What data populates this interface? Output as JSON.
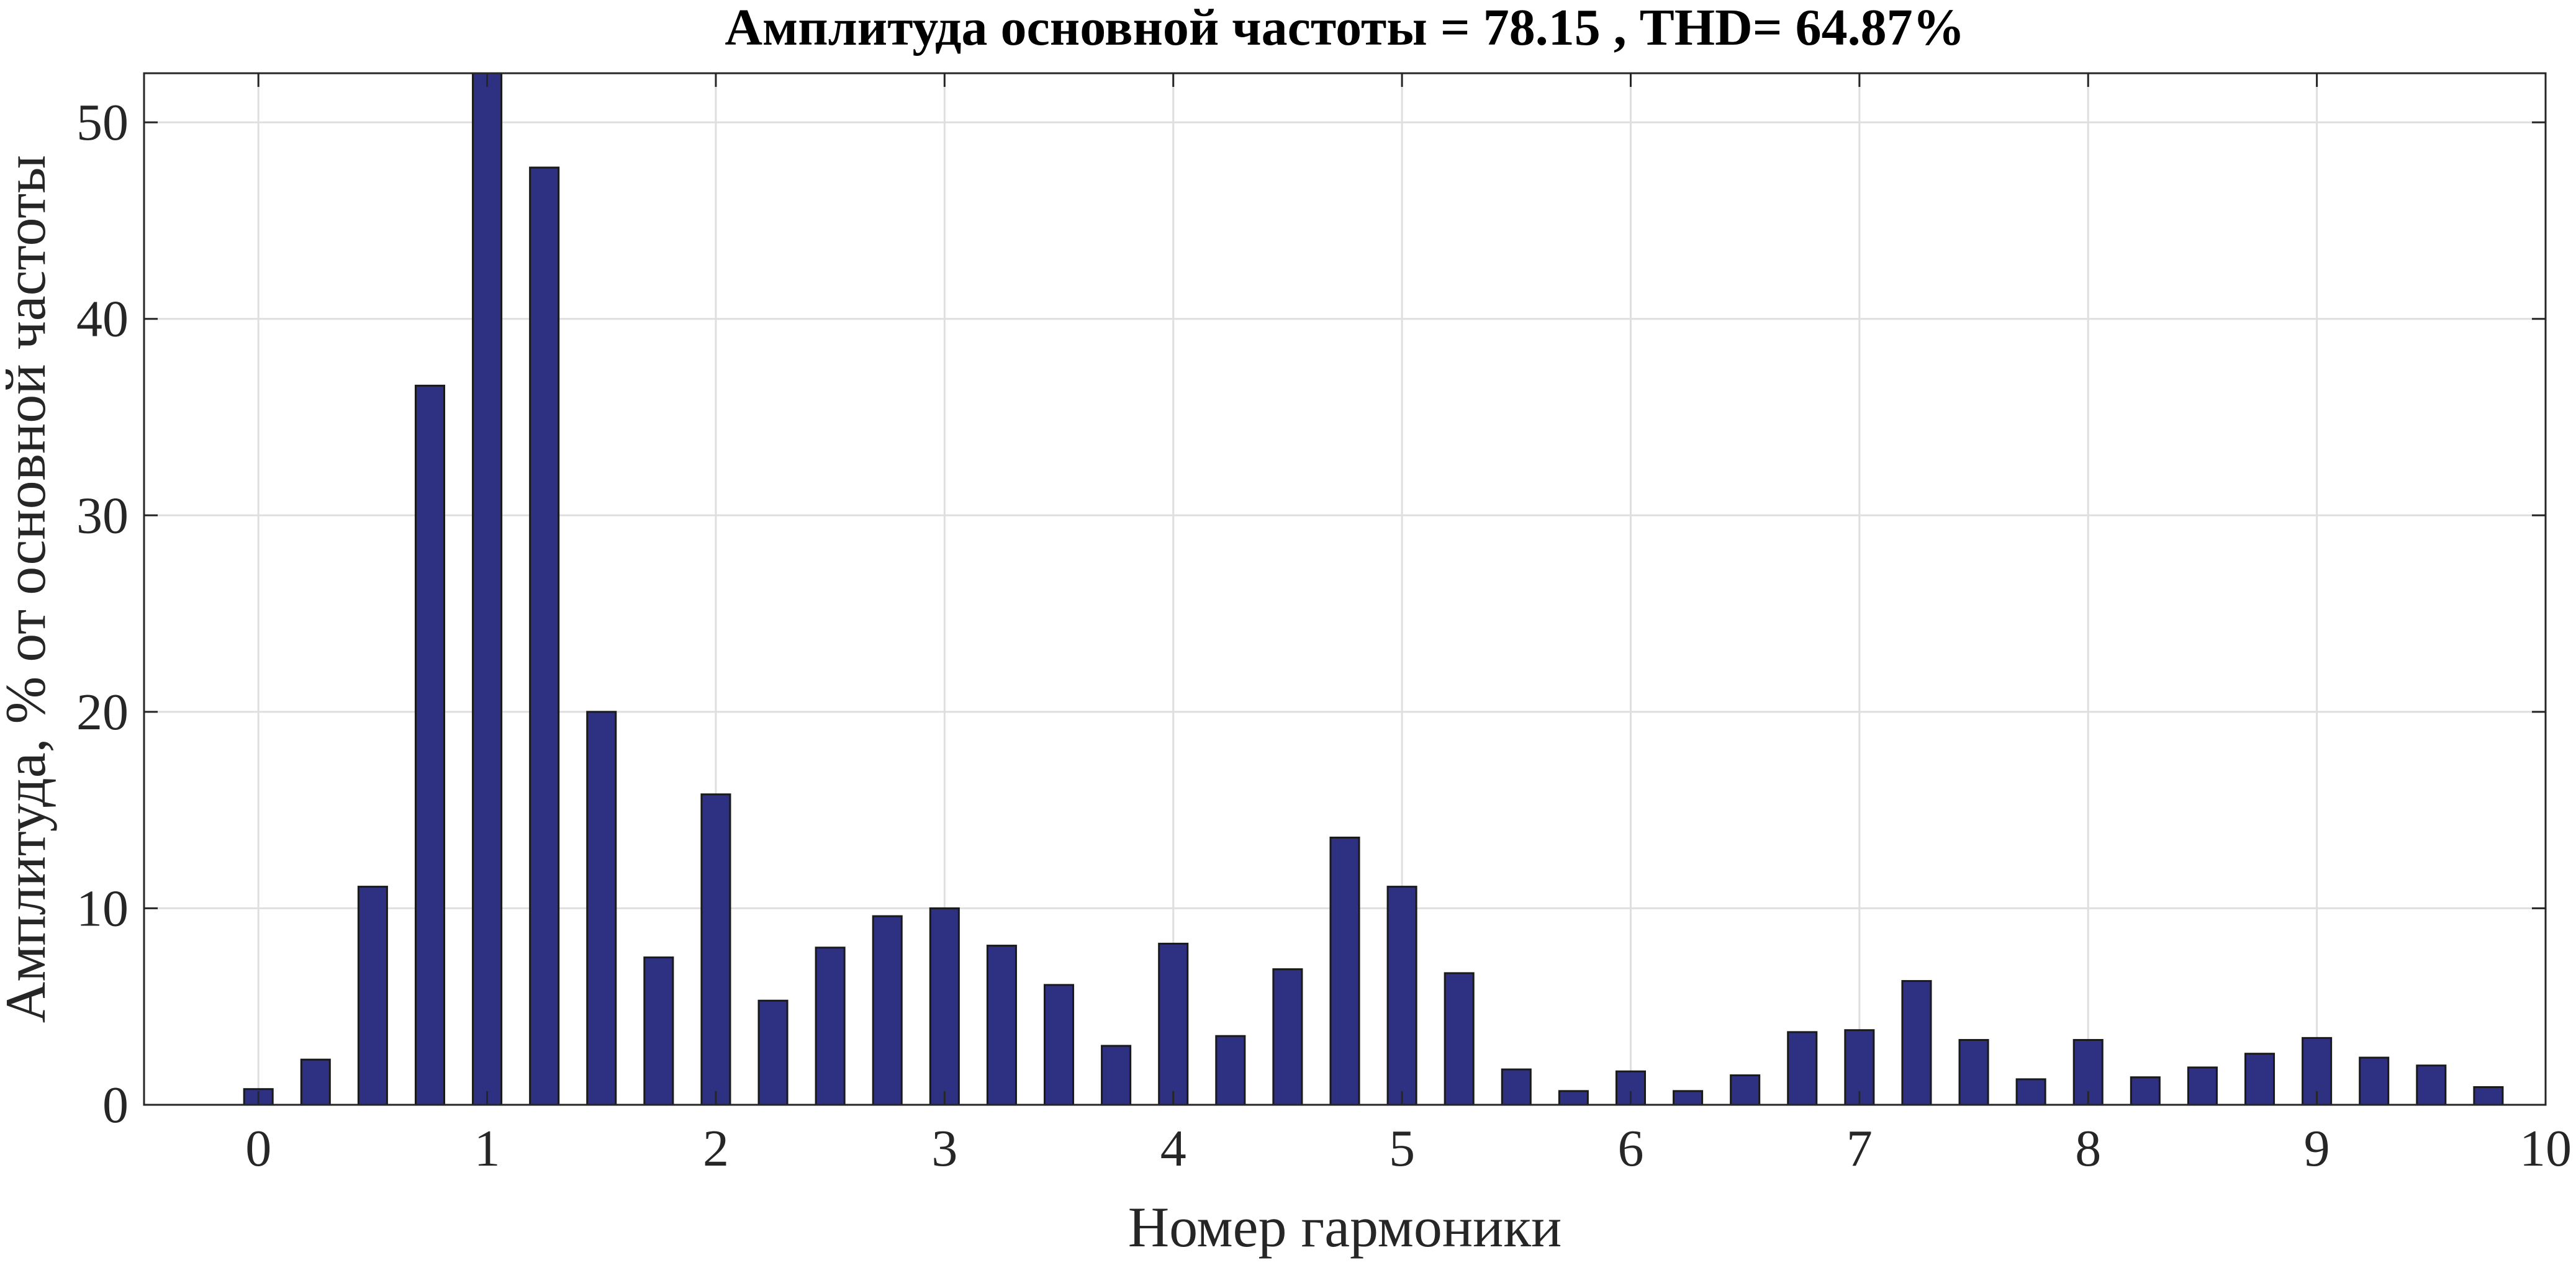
{
  "chart_data": {
    "type": "bar",
    "title": "Амплитуда основной частоты = 78.15 , THD= 64.87%",
    "xlabel": "Номер гармоники",
    "ylabel": "Амплитуда, % от основной частоты",
    "xlim": [
      -0.5,
      10
    ],
    "ylim": [
      0,
      52.5
    ],
    "xticks": [
      0,
      1,
      2,
      3,
      4,
      5,
      6,
      7,
      8,
      9,
      10
    ],
    "yticks": [
      0,
      10,
      20,
      30,
      40,
      50
    ],
    "grid": true,
    "bar_color": "#2e3182",
    "x": [
      0,
      0.25,
      0.5,
      0.75,
      1,
      1.25,
      1.5,
      1.75,
      2,
      2.25,
      2.5,
      2.75,
      3,
      3.25,
      3.5,
      3.75,
      4,
      4.25,
      4.5,
      4.75,
      5,
      5.25,
      5.5,
      5.75,
      6,
      6.25,
      6.5,
      6.75,
      7,
      7.25,
      7.5,
      7.75,
      8,
      8.25,
      8.5,
      8.75,
      9,
      9.25,
      9.5,
      9.75
    ],
    "values": [
      0.8,
      2.3,
      11.1,
      36.6,
      52.5,
      47.7,
      20.0,
      7.5,
      15.8,
      5.3,
      8.0,
      9.6,
      10.0,
      8.1,
      6.1,
      3.0,
      8.2,
      3.5,
      6.9,
      13.6,
      11.1,
      6.7,
      1.8,
      0.7,
      1.7,
      0.7,
      1.5,
      3.7,
      3.8,
      6.3,
      3.3,
      1.3,
      3.3,
      1.4,
      1.9,
      2.6,
      3.4,
      2.4,
      2.0,
      0.9
    ]
  }
}
